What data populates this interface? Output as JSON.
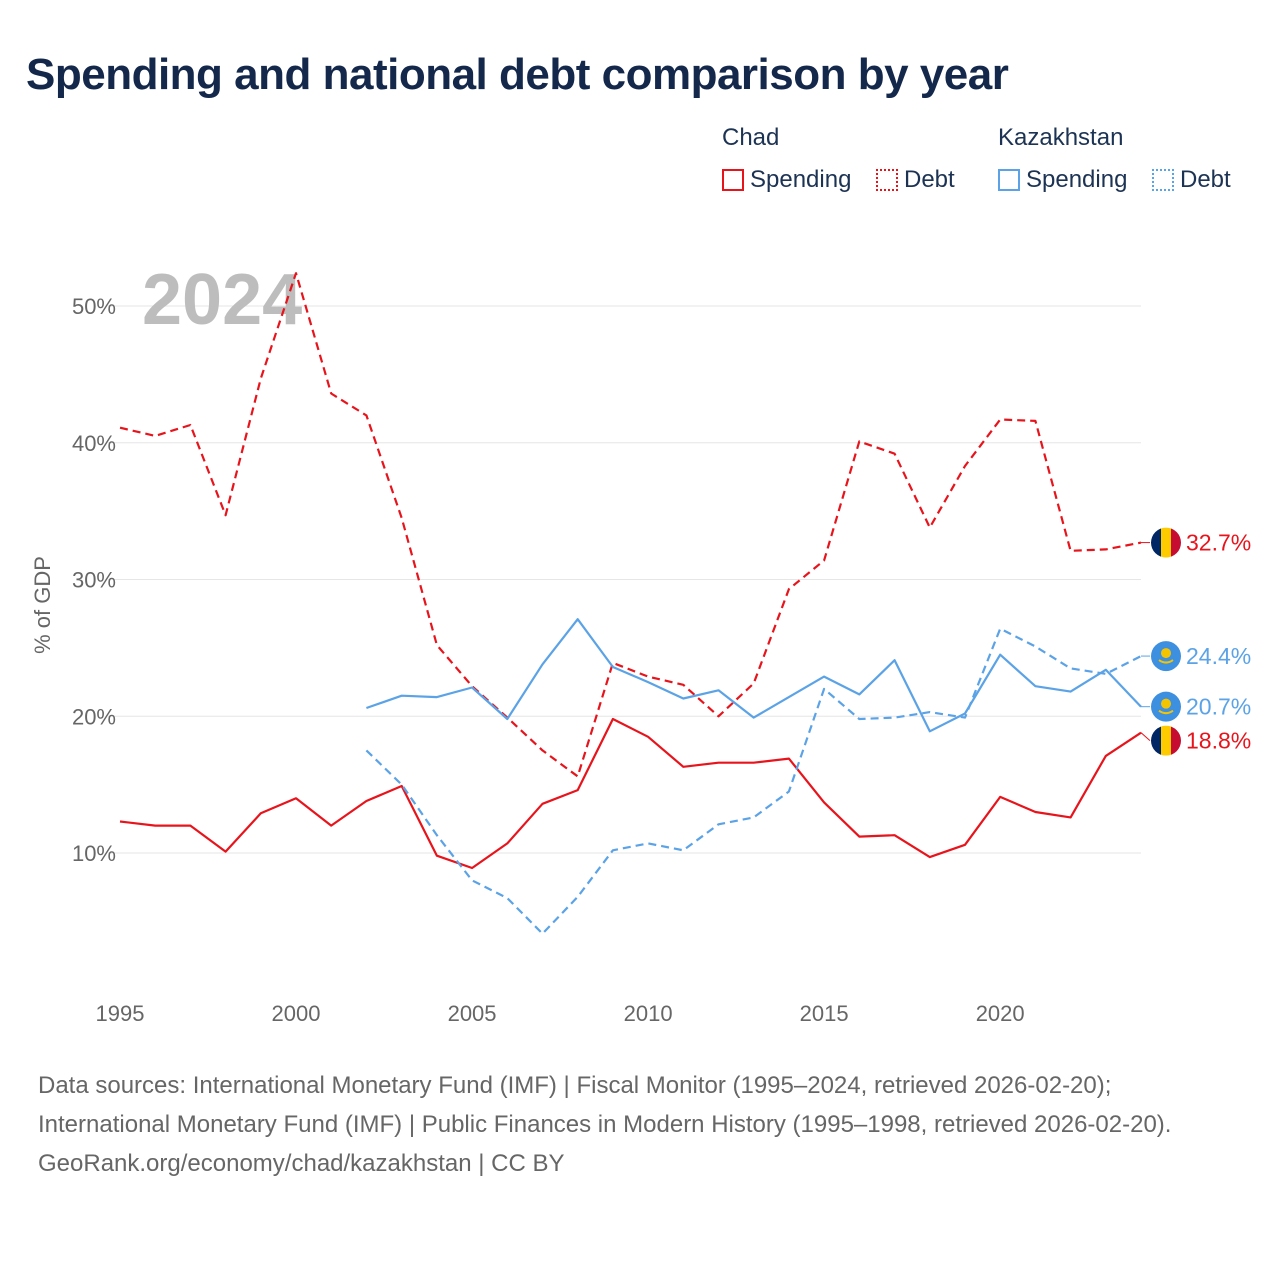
{
  "title": "Spending and national debt comparison by year",
  "year_watermark": "2024",
  "legend": {
    "groups": [
      {
        "name": "Chad",
        "color": "#e8141c",
        "items": [
          {
            "label": "Spending",
            "style": "solid"
          },
          {
            "label": "Debt",
            "style": "dotted"
          }
        ]
      },
      {
        "name": "Kazakhstan",
        "color": "#5ba3e6",
        "items": [
          {
            "label": "Spending",
            "style": "solid"
          },
          {
            "label": "Debt",
            "style": "dotted"
          }
        ]
      }
    ]
  },
  "chart_data": {
    "type": "line",
    "ylabel": "% of GDP",
    "xlabel": "",
    "xlim": [
      1995,
      2024
    ],
    "ylim": [
      3,
      55
    ],
    "xticks": [
      1995,
      2000,
      2005,
      2010,
      2015,
      2020
    ],
    "yticks": [
      10,
      20,
      30,
      40,
      50
    ],
    "ytick_labels": [
      "10%",
      "20%",
      "30%",
      "40%",
      "50%"
    ],
    "series": [
      {
        "name": "Chad Spending",
        "country": "Chad",
        "color": "#e8141c",
        "dash": "solid",
        "end_label": "18.8%",
        "x": [
          1995,
          1996,
          1997,
          1998,
          1999,
          2000,
          2001,
          2002,
          2003,
          2004,
          2005,
          2006,
          2007,
          2008,
          2009,
          2010,
          2011,
          2012,
          2013,
          2014,
          2015,
          2016,
          2017,
          2018,
          2019,
          2020,
          2021,
          2022,
          2023,
          2024
        ],
        "values": [
          12.3,
          12.0,
          12.0,
          10.1,
          12.9,
          14.0,
          12.0,
          13.8,
          14.9,
          9.8,
          8.9,
          10.7,
          13.6,
          14.6,
          19.8,
          18.5,
          16.3,
          16.6,
          16.6,
          16.9,
          13.7,
          11.2,
          11.3,
          9.7,
          10.6,
          14.1,
          13.0,
          12.6,
          17.1,
          18.8
        ]
      },
      {
        "name": "Chad Debt",
        "country": "Chad",
        "color": "#e8141c",
        "dash": "dashed",
        "end_label": "32.7%",
        "x": [
          1995,
          1996,
          1997,
          1998,
          1999,
          2000,
          2001,
          2002,
          2003,
          2004,
          2005,
          2006,
          2007,
          2008,
          2009,
          2010,
          2011,
          2012,
          2013,
          2014,
          2015,
          2016,
          2017,
          2018,
          2019,
          2020,
          2021,
          2022,
          2023,
          2024
        ],
        "values": [
          41.1,
          40.5,
          41.3,
          34.7,
          44.7,
          52.4,
          43.6,
          42.0,
          34.5,
          25.2,
          22.2,
          19.9,
          17.5,
          15.6,
          23.9,
          22.9,
          22.3,
          20.0,
          22.4,
          29.3,
          31.4,
          40.1,
          39.2,
          33.8,
          38.3,
          41.7,
          41.6,
          32.1,
          32.2,
          32.7
        ]
      },
      {
        "name": "Kazakhstan Spending",
        "country": "Kazakhstan",
        "color": "#5ba3e6",
        "dash": "solid",
        "end_label": "20.7%",
        "x": [
          2002,
          2003,
          2004,
          2005,
          2006,
          2007,
          2008,
          2009,
          2010,
          2011,
          2012,
          2013,
          2014,
          2015,
          2016,
          2017,
          2018,
          2019,
          2020,
          2021,
          2022,
          2023,
          2024
        ],
        "values": [
          20.6,
          21.5,
          21.4,
          22.1,
          19.8,
          23.8,
          27.1,
          23.6,
          22.5,
          21.3,
          21.9,
          19.9,
          21.4,
          22.9,
          21.6,
          24.1,
          18.9,
          20.2,
          24.5,
          22.2,
          21.8,
          23.4,
          20.7
        ]
      },
      {
        "name": "Kazakhstan Debt",
        "country": "Kazakhstan",
        "color": "#5ba3e6",
        "dash": "dashed",
        "end_label": "24.4%",
        "x": [
          2002,
          2003,
          2004,
          2005,
          2006,
          2007,
          2008,
          2009,
          2010,
          2011,
          2012,
          2013,
          2014,
          2015,
          2016,
          2017,
          2018,
          2019,
          2020,
          2021,
          2022,
          2023,
          2024
        ],
        "values": [
          17.5,
          15.0,
          11.3,
          8.0,
          6.7,
          4.1,
          6.8,
          10.2,
          10.7,
          10.2,
          12.1,
          12.6,
          14.5,
          22.0,
          19.8,
          19.9,
          20.3,
          19.9,
          26.4,
          25.1,
          23.5,
          23.1,
          24.4
        ]
      }
    ]
  },
  "footer": {
    "sources": "Data sources: International Monetary Fund (IMF) | Fiscal Monitor (1995–2024, retrieved 2026-02-20); International Monetary Fund (IMF) | Public Finances in Modern History (1995–1998, retrieved 2026-02-20).",
    "credit": "GeoRank.org/economy/chad/kazakhstan | CC BY"
  }
}
